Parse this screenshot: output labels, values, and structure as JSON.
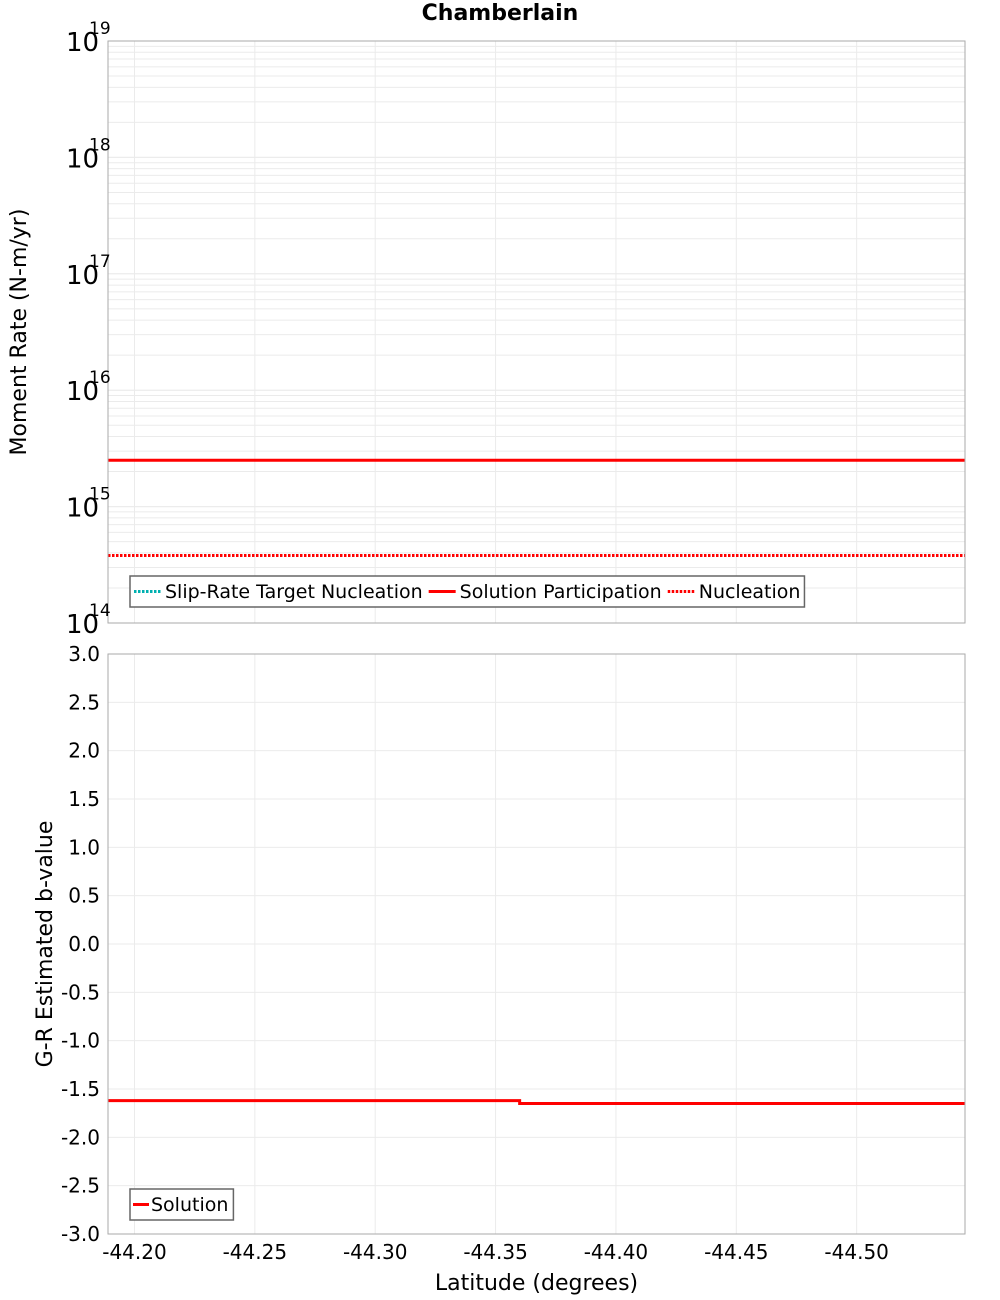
{
  "chart_data": [
    {
      "type": "line",
      "title": "Chamberlain",
      "xlabel": "Latitude (degrees)",
      "ylabel": "Moment Rate (N-m/yr)",
      "yscale": "log",
      "ylim": [
        100000000000000.0,
        1e+19
      ],
      "xlim": [
        -44.189,
        -44.545
      ],
      "x_reversed": false,
      "grid": true,
      "y_ticks": [
        {
          "base": "10",
          "exp": "19",
          "value": 1e+19
        },
        {
          "base": "10",
          "exp": "18",
          "value": 1e+18
        },
        {
          "base": "10",
          "exp": "17",
          "value": 1e+17
        },
        {
          "base": "10",
          "exp": "16",
          "value": 1e+16
        },
        {
          "base": "10",
          "exp": "15",
          "value": 1000000000000000.0
        },
        {
          "base": "10",
          "exp": "14",
          "value": 100000000000000.0
        }
      ],
      "legend": {
        "position": "lower-left",
        "entries": [
          {
            "label": "Slip-Rate Target Nucleation",
            "color": "#00b0b0",
            "style": "dotted"
          },
          {
            "label": "Solution Participation",
            "color": "#ff0000",
            "style": "solid"
          },
          {
            "label": "Nucleation",
            "color": "#ff0000",
            "style": "dotted"
          }
        ]
      },
      "series": [
        {
          "name": "Slip-Rate Target Nucleation",
          "color": "#00b0b0",
          "style": "dotted",
          "x": [
            -44.189,
            -44.274,
            -44.36,
            -44.451,
            -44.545
          ],
          "values": [
            380000000000000.0,
            380000000000000.0,
            380000000000000.0,
            380000000000000.0,
            380000000000000.0
          ]
        },
        {
          "name": "Solution Participation",
          "color": "#ff0000",
          "style": "solid",
          "x": [
            -44.189,
            -44.274,
            -44.36,
            -44.451,
            -44.545
          ],
          "values": [
            2500000000000000.0,
            2500000000000000.0,
            2500000000000000.0,
            2500000000000000.0,
            2500000000000000.0
          ]
        },
        {
          "name": "Nucleation",
          "color": "#ff0000",
          "style": "dotted",
          "x": [
            -44.189,
            -44.274,
            -44.36,
            -44.451,
            -44.545
          ],
          "values": [
            380000000000000.0,
            380000000000000.0,
            380000000000000.0,
            380000000000000.0,
            380000000000000.0
          ]
        }
      ]
    },
    {
      "type": "line",
      "title": "",
      "xlabel": "Latitude (degrees)",
      "ylabel": "G-R Estimated b-value",
      "ylim": [
        -3.0,
        3.0
      ],
      "xlim": [
        -44.189,
        -44.545
      ],
      "grid": true,
      "y_ticks": [
        "3.0",
        "2.5",
        "2.0",
        "1.5",
        "1.0",
        "0.5",
        "0.0",
        "-0.5",
        "-1.0",
        "-1.5",
        "-2.0",
        "-2.5",
        "-3.0"
      ],
      "x_ticks": [
        "-44.20",
        "-44.25",
        "-44.30",
        "-44.35",
        "-44.40",
        "-44.45",
        "-44.50"
      ],
      "legend": {
        "position": "lower-left",
        "entries": [
          {
            "label": "Solution",
            "color": "#ff0000",
            "style": "solid"
          }
        ]
      },
      "series": [
        {
          "name": "Solution",
          "color": "#ff0000",
          "style": "solid",
          "step": true,
          "x": [
            -44.189,
            -44.274,
            -44.36,
            -44.36,
            -44.451,
            -44.545
          ],
          "values": [
            -1.62,
            -1.62,
            -1.62,
            -1.65,
            -1.65,
            -1.65
          ]
        }
      ]
    }
  ]
}
